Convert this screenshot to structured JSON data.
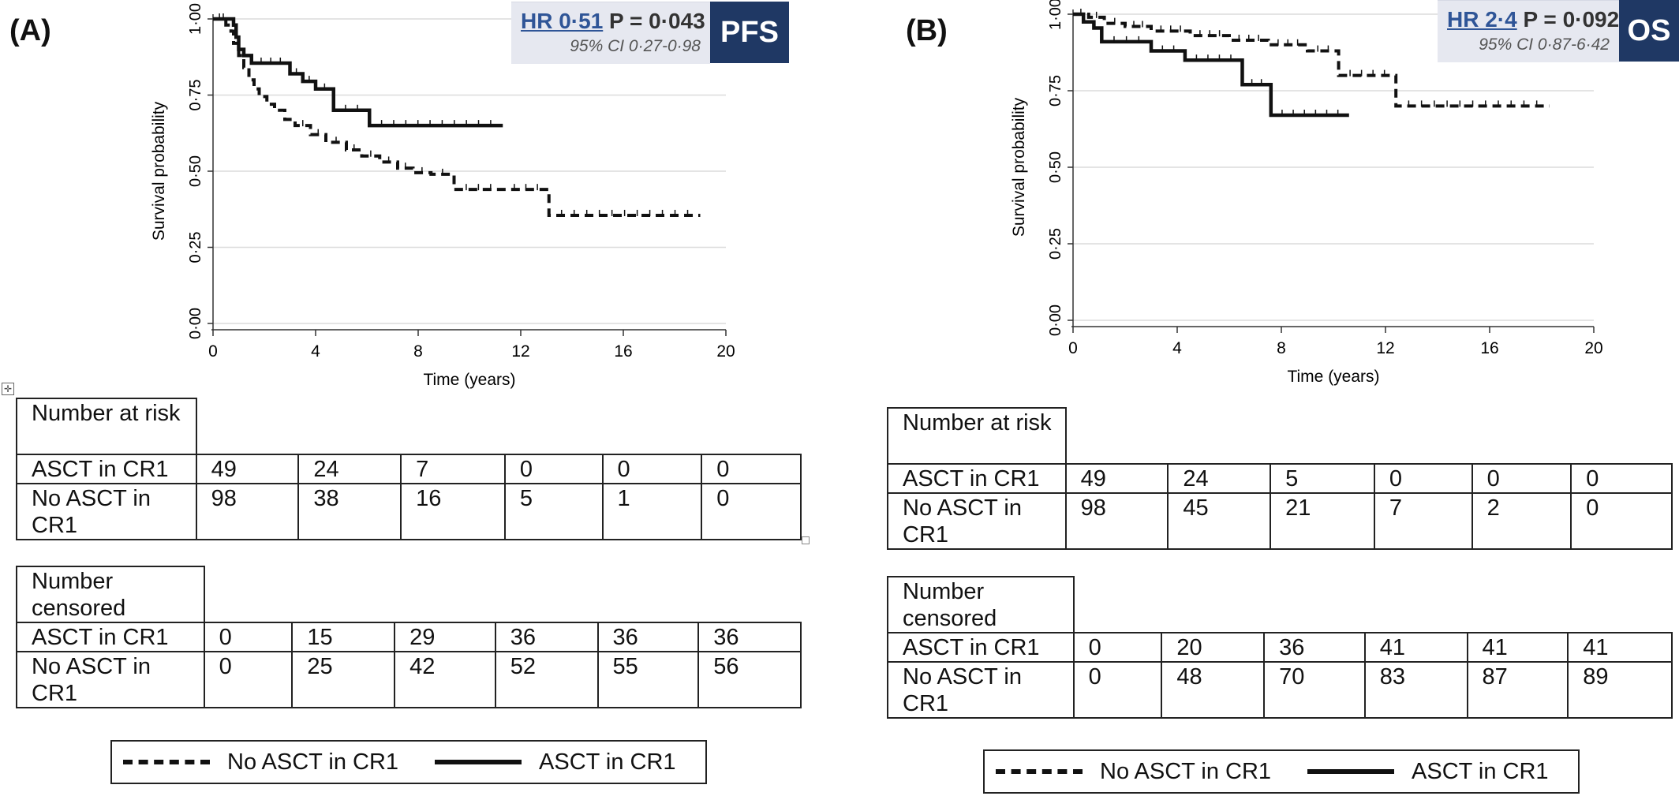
{
  "panels": [
    {
      "label": "(A)",
      "hr": {
        "hr_text": "HR 0·51",
        "p_text": "P = 0·043",
        "ci_text": "95% CI 0·27-0·98",
        "tag": "PFS"
      },
      "risk_table": {
        "header": "Number at risk",
        "rows": [
          {
            "label": "ASCT in CR1",
            "values": [
              "49",
              "24",
              "7",
              "0",
              "0",
              "0"
            ]
          },
          {
            "label": "No ASCT in CR1",
            "values": [
              "98",
              "38",
              "16",
              "5",
              "1",
              "0"
            ]
          }
        ]
      },
      "censored_table": {
        "header": "Number censored",
        "rows": [
          {
            "label": "ASCT in CR1",
            "values": [
              "0",
              "15",
              "29",
              "36",
              "36",
              "36"
            ]
          },
          {
            "label": "No ASCT in CR1",
            "values": [
              "0",
              "25",
              "42",
              "52",
              "55",
              "56"
            ]
          }
        ]
      },
      "legend": {
        "dashed": "No ASCT in CR1",
        "solid": "ASCT in CR1"
      }
    },
    {
      "label": "(B)",
      "hr": {
        "hr_text": "HR 2·4",
        "p_text": "P = 0·092",
        "ci_text": "95% CI 0·87-6·42",
        "tag": "OS"
      },
      "risk_table": {
        "header": "Number at risk",
        "rows": [
          {
            "label": "ASCT in CR1",
            "values": [
              "49",
              "24",
              "5",
              "0",
              "0",
              "0"
            ]
          },
          {
            "label": "No ASCT in CR1",
            "values": [
              "98",
              "45",
              "21",
              "7",
              "2",
              "0"
            ]
          }
        ]
      },
      "censored_table": {
        "header": "Number censored",
        "rows": [
          {
            "label": "ASCT in CR1",
            "values": [
              "0",
              "20",
              "36",
              "41",
              "41",
              "41"
            ]
          },
          {
            "label": "No ASCT in CR1",
            "values": [
              "0",
              "48",
              "70",
              "83",
              "87",
              "89"
            ]
          }
        ]
      },
      "legend": {
        "dashed": "No ASCT in CR1",
        "solid": "ASCT in CR1"
      }
    }
  ],
  "chart_data": [
    {
      "type": "line",
      "title": "",
      "xlabel": "Time (years)",
      "ylabel": "Survival probability",
      "xlim": [
        0,
        20
      ],
      "ylim": [
        0,
        1
      ],
      "xticks": [
        "0",
        "4",
        "8",
        "12",
        "16",
        "20"
      ],
      "yticks": [
        "0·00",
        "0·25",
        "0·50",
        "0·75",
        "1·00"
      ],
      "grid": "horizontal",
      "series": [
        {
          "name": "ASCT in CR1",
          "style": "solid",
          "x": [
            0,
            0.8,
            0.9,
            1.0,
            1.2,
            1.5,
            3.0,
            3.5,
            4.0,
            4.7,
            6.1,
            11.3
          ],
          "y": [
            1.0,
            0.98,
            0.94,
            0.9,
            0.88,
            0.855,
            0.82,
            0.795,
            0.77,
            0.7,
            0.65,
            0.65
          ]
        },
        {
          "name": "No ASCT in CR1",
          "style": "dashed",
          "x": [
            0,
            0.5,
            0.7,
            0.8,
            1.0,
            1.2,
            1.4,
            1.6,
            1.8,
            2.1,
            2.4,
            2.8,
            3.2,
            3.8,
            4.4,
            5.2,
            5.8,
            6.5,
            7.2,
            7.8,
            8.5,
            9.4,
            11.3,
            13.1,
            19.0
          ],
          "y": [
            1.0,
            0.98,
            0.96,
            0.92,
            0.88,
            0.84,
            0.8,
            0.77,
            0.745,
            0.72,
            0.7,
            0.67,
            0.65,
            0.62,
            0.595,
            0.57,
            0.55,
            0.53,
            0.51,
            0.495,
            0.49,
            0.44,
            0.44,
            0.355,
            0.355
          ]
        }
      ]
    },
    {
      "type": "line",
      "title": "",
      "xlabel": "Time (years)",
      "ylabel": "Survival probability",
      "xlim": [
        0,
        20
      ],
      "ylim": [
        0,
        1
      ],
      "xticks": [
        "0",
        "4",
        "8",
        "12",
        "16",
        "20"
      ],
      "yticks": [
        "0·00",
        "0·25",
        "0·50",
        "0·75",
        "1·00"
      ],
      "grid": "horizontal",
      "series": [
        {
          "name": "ASCT in CR1",
          "style": "solid",
          "x": [
            0,
            0.4,
            0.8,
            1.1,
            3.0,
            4.3,
            6.5,
            7.6,
            10.6
          ],
          "y": [
            1.0,
            0.975,
            0.955,
            0.91,
            0.88,
            0.85,
            0.77,
            0.67,
            0.67
          ]
        },
        {
          "name": "No ASCT in CR1",
          "style": "dashed",
          "x": [
            0,
            0.6,
            1.2,
            2.0,
            3.0,
            4.5,
            6.0,
            7.5,
            9.0,
            10.2,
            12.4,
            18.3
          ],
          "y": [
            1.0,
            0.99,
            0.97,
            0.96,
            0.945,
            0.93,
            0.915,
            0.9,
            0.88,
            0.8,
            0.7,
            0.7
          ]
        }
      ]
    }
  ]
}
